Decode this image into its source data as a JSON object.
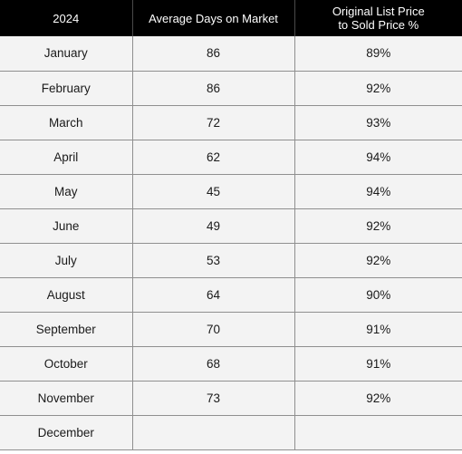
{
  "table": {
    "headers": {
      "year": "2024",
      "days": "Average Days on Market",
      "ratio_line1": "Original List Price",
      "ratio_line2": "to Sold Price %"
    },
    "rows": [
      {
        "month": "January",
        "days": "86",
        "ratio": "89%"
      },
      {
        "month": "February",
        "days": "86",
        "ratio": "92%"
      },
      {
        "month": "March",
        "days": "72",
        "ratio": "93%"
      },
      {
        "month": "April",
        "days": "62",
        "ratio": "94%"
      },
      {
        "month": "May",
        "days": "45",
        "ratio": "94%"
      },
      {
        "month": "June",
        "days": "49",
        "ratio": "92%"
      },
      {
        "month": "July",
        "days": "53",
        "ratio": "92%"
      },
      {
        "month": "August",
        "days": "64",
        "ratio": "90%"
      },
      {
        "month": "September",
        "days": "70",
        "ratio": "91%"
      },
      {
        "month": "October",
        "days": "68",
        "ratio": "91%"
      },
      {
        "month": "November",
        "days": "73",
        "ratio": "92%"
      },
      {
        "month": "December",
        "days": "",
        "ratio": ""
      }
    ]
  },
  "colors": {
    "header_bg": "#000000",
    "header_text": "#ffffff",
    "row_bg": "#f3f3f3",
    "grid_line": "#8f8f8f"
  }
}
